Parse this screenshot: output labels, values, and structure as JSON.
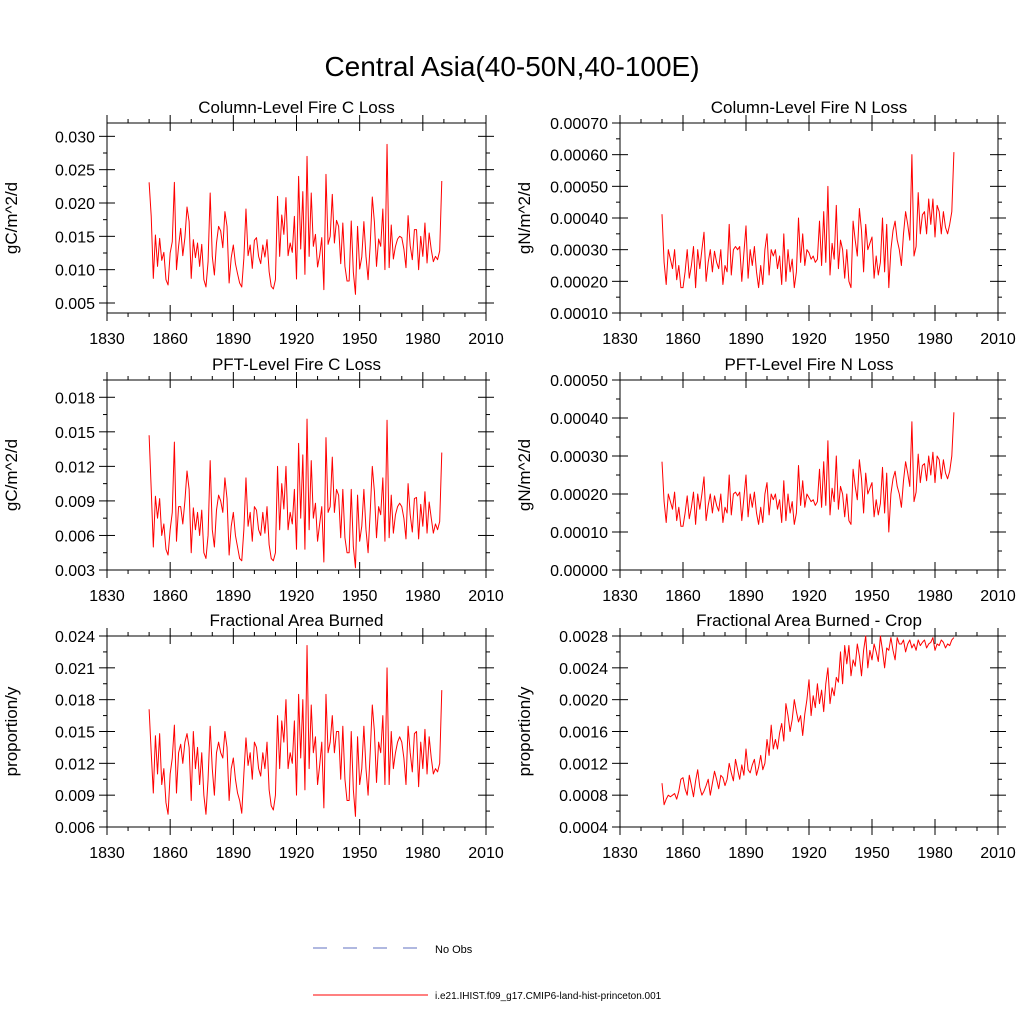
{
  "figure": {
    "title": "Central Asia(40-50N,40-100E)",
    "legend": [
      {
        "label": "No Obs",
        "color": "#6070c0",
        "dash": true
      },
      {
        "label": "i.e21.IHIST.f09_g17.CMIP6-land-hist-princeton.001",
        "color": "#ff0000",
        "dash": false
      }
    ],
    "line_color": "#ff0000"
  },
  "chart_data": [
    {
      "type": "line",
      "title": "Column-Level Fire C Loss",
      "xlabel": "",
      "ylabel": "gC/m^2/d",
      "xlim": [
        1830,
        2010
      ],
      "ylim": [
        0.0035,
        0.032
      ],
      "xticks": [
        1830,
        1860,
        1890,
        1920,
        1950,
        1980,
        2010
      ],
      "xtick_labels": [
        "1830",
        "1860",
        "1890",
        "1920",
        "1950",
        "1980",
        "2010"
      ],
      "yticks": [
        0.005,
        0.01,
        0.015,
        0.02,
        0.025,
        0.03
      ],
      "ytick_labels": [
        "0.005",
        "0.010",
        "0.015",
        "0.020",
        "0.025",
        "0.030"
      ],
      "yminor": 0.0025,
      "grid": false,
      "x_start": 1850,
      "x_step": 1,
      "values": [
        0.0231,
        0.018,
        0.0087,
        0.0152,
        0.0105,
        0.0147,
        0.0114,
        0.0126,
        0.0085,
        0.0077,
        0.0125,
        0.0142,
        0.0231,
        0.01,
        0.0135,
        0.0162,
        0.0121,
        0.0148,
        0.0194,
        0.0172,
        0.0087,
        0.0145,
        0.0118,
        0.014,
        0.0105,
        0.0138,
        0.0085,
        0.0074,
        0.0112,
        0.0215,
        0.012,
        0.0092,
        0.014,
        0.0165,
        0.0158,
        0.0133,
        0.0187,
        0.0165,
        0.008,
        0.0118,
        0.0137,
        0.0109,
        0.0094,
        0.008,
        0.0074,
        0.0117,
        0.0191,
        0.0121,
        0.0137,
        0.0102,
        0.0144,
        0.0148,
        0.012,
        0.0109,
        0.0137,
        0.0119,
        0.0145,
        0.0097,
        0.0075,
        0.0071,
        0.0085,
        0.021,
        0.012,
        0.0182,
        0.0153,
        0.0208,
        0.0121,
        0.014,
        0.0126,
        0.018,
        0.0086,
        0.024,
        0.0131,
        0.0217,
        0.0093,
        0.027,
        0.012,
        0.0215,
        0.0135,
        0.0153,
        0.0104,
        0.0121,
        0.0148,
        0.007,
        0.0243,
        0.0138,
        0.015,
        0.0213,
        0.014,
        0.0174,
        0.0165,
        0.0109,
        0.017,
        0.0105,
        0.0083,
        0.0083,
        0.0173,
        0.0096,
        0.0063,
        0.0165,
        0.0101,
        0.0119,
        0.0172,
        0.012,
        0.0085,
        0.0137,
        0.0209,
        0.0171,
        0.0105,
        0.0146,
        0.0135,
        0.0191,
        0.01,
        0.0288,
        0.0103,
        0.0167,
        0.0116,
        0.0135,
        0.0146,
        0.015,
        0.0148,
        0.0131,
        0.0103,
        0.0181,
        0.0136,
        0.0115,
        0.016,
        0.016,
        0.01,
        0.015,
        0.012,
        0.017,
        0.011,
        0.0155,
        0.013,
        0.0112,
        0.012,
        0.0115,
        0.0128,
        0.0233
      ]
    },
    {
      "type": "line",
      "title": "Column-Level Fire N Loss",
      "xlabel": "",
      "ylabel": "gN/m^2/d",
      "xlim": [
        1830,
        2010
      ],
      "ylim": [
        0.0001,
        0.0007
      ],
      "xticks": [
        1830,
        1860,
        1890,
        1920,
        1950,
        1980,
        2010
      ],
      "xtick_labels": [
        "1830",
        "1860",
        "1890",
        "1920",
        "1950",
        "1980",
        "2010"
      ],
      "yticks": [
        0.0001,
        0.0002,
        0.0003,
        0.0004,
        0.0005,
        0.0006,
        0.0007
      ],
      "ytick_labels": [
        "0.00010",
        "0.00020",
        "0.00030",
        "0.00040",
        "0.00050",
        "0.00060",
        "0.00070"
      ],
      "yminor": 5e-05,
      "grid": false,
      "x_start": 1850,
      "x_step": 1,
      "values": [
        0.000412,
        0.00026,
        0.00019,
        0.0003,
        0.00027,
        0.00024,
        0.0003,
        0.000205,
        0.00025,
        0.00018,
        0.00018,
        0.00023,
        0.0003,
        0.00021,
        0.00025,
        0.00031,
        0.00018,
        0.0003,
        0.00024,
        0.0003,
        0.000355,
        0.0002,
        0.00026,
        0.0003,
        0.00023,
        0.000295,
        0.00026,
        0.00024,
        0.0003,
        0.00019,
        0.00025,
        0.00023,
        0.00038,
        0.00022,
        0.0003,
        0.00031,
        0.0003,
        0.00031,
        0.0002,
        0.00029,
        0.000375,
        0.00021,
        0.0003,
        0.00025,
        0.00031,
        0.00023,
        0.00018,
        0.00025,
        0.00019,
        0.0003,
        0.00035,
        0.00022,
        0.0003,
        0.00028,
        0.0003,
        0.00024,
        0.00028,
        0.00019,
        0.00035,
        0.0002,
        0.0003,
        0.00023,
        0.00027,
        0.00018,
        0.00023,
        0.0004,
        0.00026,
        0.00035,
        0.00025,
        0.0003,
        0.00029,
        0.00027,
        0.00028,
        0.00026,
        0.00027,
        0.00039,
        0.00025,
        0.00042,
        0.00026,
        0.0005,
        0.00022,
        0.00032,
        0.00027,
        0.00044,
        0.00024,
        0.00033,
        0.0003,
        0.00021,
        0.0003,
        0.0002,
        0.00018,
        0.00039,
        0.00033,
        0.00028,
        0.00043,
        0.00036,
        0.00023,
        0.00038,
        0.0003,
        0.00032,
        0.00034,
        0.00021,
        0.00028,
        0.00022,
        0.00026,
        0.0004,
        0.00023,
        0.00038,
        0.00018,
        0.0003,
        0.00036,
        0.00039,
        0.00033,
        0.0003,
        0.00025,
        0.00035,
        0.00042,
        0.00038,
        0.00033,
        0.0006,
        0.00028,
        0.00031,
        0.00048,
        0.00035,
        0.00041,
        0.00042,
        0.00035,
        0.00046,
        0.00038,
        0.00046,
        0.00034,
        0.00044,
        0.00042,
        0.00035,
        0.00042,
        0.00037,
        0.00035,
        0.00038,
        0.00042,
        0.000608
      ]
    },
    {
      "type": "line",
      "title": "PFT-Level Fire C Loss",
      "xlabel": "",
      "ylabel": "gC/m^2/d",
      "xlim": [
        1830,
        2010
      ],
      "ylim": [
        0.003,
        0.0195
      ],
      "xticks": [
        1830,
        1860,
        1890,
        1920,
        1950,
        1980,
        2010
      ],
      "xtick_labels": [
        "1830",
        "1860",
        "1890",
        "1920",
        "1950",
        "1980",
        "2010"
      ],
      "yticks": [
        0.003,
        0.006,
        0.009,
        0.012,
        0.015,
        0.018
      ],
      "ytick_labels": [
        "0.003",
        "0.006",
        "0.009",
        "0.012",
        "0.015",
        "0.018"
      ],
      "yminor": 0.0015,
      "grid": false,
      "x_start": 1850,
      "x_step": 1,
      "values": [
        0.0147,
        0.01,
        0.005,
        0.0094,
        0.0075,
        0.0092,
        0.006,
        0.007,
        0.0048,
        0.0043,
        0.0065,
        0.008,
        0.0141,
        0.0055,
        0.0085,
        0.0085,
        0.007,
        0.009,
        0.0116,
        0.01,
        0.0045,
        0.0084,
        0.0065,
        0.008,
        0.006,
        0.0082,
        0.0045,
        0.004,
        0.006,
        0.0125,
        0.0065,
        0.005,
        0.0082,
        0.0095,
        0.009,
        0.008,
        0.011,
        0.0092,
        0.0043,
        0.0068,
        0.008,
        0.006,
        0.005,
        0.004,
        0.0038,
        0.0065,
        0.011,
        0.0068,
        0.008,
        0.0055,
        0.0085,
        0.0082,
        0.0065,
        0.006,
        0.008,
        0.0062,
        0.0085,
        0.0052,
        0.004,
        0.0038,
        0.0045,
        0.012,
        0.0065,
        0.0105,
        0.0083,
        0.012,
        0.0065,
        0.008,
        0.007,
        0.01,
        0.0048,
        0.014,
        0.0075,
        0.013,
        0.0048,
        0.0161,
        0.0065,
        0.0125,
        0.0075,
        0.0088,
        0.0055,
        0.007,
        0.0085,
        0.0037,
        0.0145,
        0.008,
        0.0085,
        0.0128,
        0.008,
        0.01,
        0.0095,
        0.0058,
        0.01,
        0.0058,
        0.0045,
        0.0045,
        0.01,
        0.005,
        0.0032,
        0.0095,
        0.0055,
        0.0068,
        0.01,
        0.0065,
        0.0045,
        0.008,
        0.012,
        0.0098,
        0.0058,
        0.0085,
        0.0078,
        0.011,
        0.0055,
        0.016,
        0.0058,
        0.0095,
        0.0062,
        0.0078,
        0.0085,
        0.0088,
        0.0085,
        0.0075,
        0.0057,
        0.0105,
        0.0078,
        0.0063,
        0.0092,
        0.0093,
        0.0057,
        0.0087,
        0.0068,
        0.0098,
        0.0062,
        0.0089,
        0.0075,
        0.0062,
        0.007,
        0.0065,
        0.0072,
        0.0132
      ]
    },
    {
      "type": "line",
      "title": "PFT-Level Fire N Loss",
      "xlabel": "",
      "ylabel": "gN/m^2/d",
      "xlim": [
        1830,
        2010
      ],
      "ylim": [
        0.0,
        0.0005
      ],
      "xticks": [
        1830,
        1860,
        1890,
        1920,
        1950,
        1980,
        2010
      ],
      "xtick_labels": [
        "1830",
        "1860",
        "1890",
        "1920",
        "1950",
        "1980",
        "2010"
      ],
      "yticks": [
        0.0,
        0.0001,
        0.0002,
        0.0003,
        0.0004,
        0.0005
      ],
      "ytick_labels": [
        "0.00000",
        "0.00010",
        "0.00020",
        "0.00030",
        "0.00040",
        "0.00050"
      ],
      "yminor": 5e-05,
      "grid": false,
      "x_start": 1850,
      "x_step": 1,
      "values": [
        0.000285,
        0.00018,
        0.000125,
        0.0002,
        0.00018,
        0.00016,
        0.000205,
        0.00013,
        0.000165,
        0.000115,
        0.000115,
        0.00015,
        0.000195,
        0.000135,
        0.000165,
        0.000205,
        0.00012,
        0.0002,
        0.00016,
        0.0002,
        0.000245,
        0.00013,
        0.00017,
        0.0002,
        0.00015,
        0.000195,
        0.00017,
        0.000155,
        0.0002,
        0.000125,
        0.000165,
        0.00015,
        0.00025,
        0.000145,
        0.0002,
        0.000205,
        0.000195,
        0.000205,
        0.00013,
        0.00019,
        0.00025,
        0.00014,
        0.0002,
        0.000165,
        0.000205,
        0.00015,
        0.00012,
        0.000165,
        0.000125,
        0.0002,
        0.00023,
        0.000145,
        0.0002,
        0.000185,
        0.0002,
        0.00016,
        0.000185,
        0.000125,
        0.000235,
        0.00013,
        0.0002,
        0.00015,
        0.00018,
        0.00012,
        0.00015,
        0.000275,
        0.00017,
        0.000235,
        0.000165,
        0.0002,
        0.00019,
        0.00018,
        0.000185,
        0.00017,
        0.00018,
        0.000265,
        0.000165,
        0.000285,
        0.00017,
        0.00034,
        0.000145,
        0.000215,
        0.00018,
        0.0003,
        0.00016,
        0.00022,
        0.0002,
        0.00014,
        0.0002,
        0.00013,
        0.00012,
        0.000265,
        0.00022,
        0.000185,
        0.00029,
        0.00024,
        0.00015,
        0.000255,
        0.0002,
        0.000215,
        0.00023,
        0.00014,
        0.000185,
        0.000145,
        0.000175,
        0.00027,
        0.00015,
        0.000255,
        0.0001,
        0.0002,
        0.00024,
        0.00026,
        0.00022,
        0.0002,
        0.000165,
        0.000235,
        0.000285,
        0.000255,
        0.00022,
        0.00039,
        0.00018,
        0.000205,
        0.000305,
        0.00023,
        0.000275,
        0.00028,
        0.000235,
        0.0003,
        0.00025,
        0.00031,
        0.00023,
        0.0003,
        0.00029,
        0.00024,
        0.00029,
        0.000255,
        0.00024,
        0.00026,
        0.0003,
        0.000415
      ]
    },
    {
      "type": "line",
      "title": "Fractional Area Burned",
      "xlabel": "",
      "ylabel": "proportion/y",
      "xlim": [
        1830,
        2010
      ],
      "ylim": [
        0.006,
        0.024
      ],
      "xticks": [
        1830,
        1860,
        1890,
        1920,
        1950,
        1980,
        2010
      ],
      "xtick_labels": [
        "1830",
        "1860",
        "1890",
        "1920",
        "1950",
        "1980",
        "2010"
      ],
      "yticks": [
        0.006,
        0.009,
        0.012,
        0.015,
        0.018,
        0.021,
        0.024
      ],
      "ytick_labels": [
        "0.006",
        "0.009",
        "0.012",
        "0.015",
        "0.018",
        "0.021",
        "0.024"
      ],
      "yminor": 0.0015,
      "grid": false,
      "x_start": 1850,
      "x_step": 1,
      "values": [
        0.0171,
        0.013,
        0.0092,
        0.0146,
        0.011,
        0.0148,
        0.01,
        0.0115,
        0.0083,
        0.0072,
        0.011,
        0.0125,
        0.0156,
        0.0092,
        0.013,
        0.0138,
        0.012,
        0.014,
        0.0148,
        0.0135,
        0.0085,
        0.015,
        0.0115,
        0.0135,
        0.01,
        0.013,
        0.009,
        0.0072,
        0.0105,
        0.0155,
        0.0115,
        0.009,
        0.013,
        0.014,
        0.013,
        0.0125,
        0.015,
        0.0135,
        0.0085,
        0.0115,
        0.0125,
        0.0105,
        0.0092,
        0.0085,
        0.0073,
        0.011,
        0.0144,
        0.0118,
        0.013,
        0.0105,
        0.014,
        0.0135,
        0.0115,
        0.0108,
        0.013,
        0.0115,
        0.014,
        0.0095,
        0.008,
        0.0076,
        0.009,
        0.0165,
        0.0115,
        0.016,
        0.014,
        0.018,
        0.0115,
        0.013,
        0.012,
        0.016,
        0.009,
        0.0185,
        0.0125,
        0.018,
        0.0095,
        0.0231,
        0.0115,
        0.0175,
        0.013,
        0.0145,
        0.01,
        0.0118,
        0.014,
        0.0078,
        0.0185,
        0.013,
        0.014,
        0.0165,
        0.013,
        0.015,
        0.015,
        0.0105,
        0.0155,
        0.0105,
        0.0085,
        0.0085,
        0.015,
        0.0095,
        0.007,
        0.0145,
        0.01,
        0.0115,
        0.0155,
        0.0115,
        0.009,
        0.013,
        0.0175,
        0.015,
        0.0102,
        0.014,
        0.013,
        0.0165,
        0.01,
        0.021,
        0.01,
        0.015,
        0.0115,
        0.013,
        0.014,
        0.0145,
        0.014,
        0.0125,
        0.01,
        0.0155,
        0.013,
        0.0112,
        0.0148,
        0.015,
        0.0098,
        0.014,
        0.0115,
        0.0152,
        0.011,
        0.0145,
        0.0125,
        0.011,
        0.0115,
        0.0112,
        0.012,
        0.0189
      ]
    },
    {
      "type": "line",
      "title": "Fractional Area Burned - Crop",
      "xlabel": "",
      "ylabel": "proportion/y",
      "xlim": [
        1830,
        2010
      ],
      "ylim": [
        0.0004,
        0.0028
      ],
      "xticks": [
        1830,
        1860,
        1890,
        1920,
        1950,
        1980,
        2010
      ],
      "xtick_labels": [
        "1830",
        "1860",
        "1890",
        "1920",
        "1950",
        "1980",
        "2010"
      ],
      "yticks": [
        0.0004,
        0.0008,
        0.0012,
        0.0016,
        0.002,
        0.0024,
        0.0028
      ],
      "ytick_labels": [
        "0.0004",
        "0.0008",
        "0.0012",
        "0.0016",
        "0.0020",
        "0.0024",
        "0.0028"
      ],
      "yminor": 0.0002,
      "grid": false,
      "x_start": 1850,
      "x_step": 1,
      "values": [
        0.00095,
        0.00068,
        0.00075,
        0.0008,
        0.00078,
        0.0008,
        0.00082,
        0.00075,
        0.00085,
        0.001,
        0.00102,
        0.00088,
        0.0008,
        0.00105,
        0.00092,
        0.00078,
        0.00098,
        0.00112,
        0.0009,
        0.0008,
        0.00085,
        0.00092,
        0.001,
        0.0008,
        0.00095,
        0.0011,
        0.001,
        0.00088,
        0.00105,
        0.00102,
        0.00092,
        0.001,
        0.0012,
        0.00108,
        0.00098,
        0.00125,
        0.00112,
        0.001,
        0.00118,
        0.00105,
        0.00138,
        0.00112,
        0.00108,
        0.00118,
        0.00125,
        0.00105,
        0.00115,
        0.0013,
        0.00112,
        0.0012,
        0.0015,
        0.0013,
        0.00168,
        0.00138,
        0.0015,
        0.00138,
        0.00158,
        0.0017,
        0.00148,
        0.00195,
        0.0018,
        0.0016,
        0.00175,
        0.002,
        0.00185,
        0.00172,
        0.0018,
        0.00155,
        0.00182,
        0.002,
        0.00225,
        0.0018,
        0.00205,
        0.0019,
        0.0022,
        0.00195,
        0.00212,
        0.00185,
        0.0022,
        0.0024,
        0.00195,
        0.00215,
        0.00205,
        0.00228,
        0.00222,
        0.0026,
        0.0022,
        0.00268,
        0.00245,
        0.00268,
        0.0023,
        0.0025,
        0.00242,
        0.0027,
        0.00255,
        0.0023,
        0.00262,
        0.0028,
        0.0024,
        0.00262,
        0.0025,
        0.0027,
        0.0026,
        0.00248,
        0.0028,
        0.00262,
        0.0024,
        0.00265,
        0.00262,
        0.00278,
        0.00262,
        0.0025,
        0.00278,
        0.0027,
        0.0027,
        0.00275,
        0.0026,
        0.0027,
        0.00275,
        0.00265,
        0.0027,
        0.00262,
        0.00275,
        0.00268,
        0.00272,
        0.00275,
        0.00265,
        0.0027,
        0.00272,
        0.00278,
        0.00262,
        0.0027,
        0.00268,
        0.00275,
        0.00272,
        0.00265,
        0.0027,
        0.00268,
        0.00275,
        0.00278
      ]
    }
  ]
}
